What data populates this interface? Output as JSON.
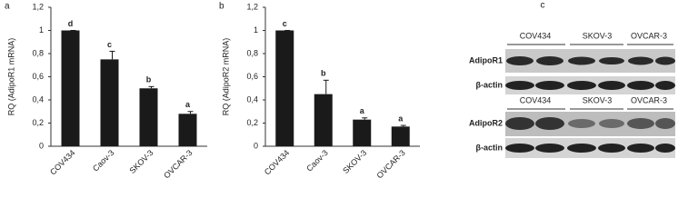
{
  "chart_data": [
    {
      "type": "bar",
      "panel_label": "a",
      "y_label": "RQ (AdipoR1 mRNA)",
      "categories": [
        "COV434",
        "Caov-3",
        "SKOV-3",
        "OVCAR-3"
      ],
      "series": [
        {
          "color": "#1a1a1a",
          "values": [
            1,
            0.75,
            0.5,
            0.28
          ],
          "errors": [
            0,
            0.07,
            0.015,
            0.02
          ]
        }
      ],
      "annotations": [
        "d",
        "c",
        "b",
        "a"
      ],
      "ylim": [
        0,
        1.2
      ],
      "yticks": [
        0,
        {
          "value": 0.2,
          "label": "0,2"
        },
        {
          "value": 0.4,
          "label": "0,4"
        },
        {
          "value": 0.6,
          "label": "0,6"
        },
        {
          "value": 0.8,
          "label": "0,8"
        },
        1,
        {
          "value": 1.2,
          "label": "1,2"
        }
      ]
    },
    {
      "type": "bar",
      "panel_label": "b",
      "y_label": "RQ (AdipoR2 mRNA)",
      "categories": [
        "COV434",
        "Caov-3",
        "SKOV-3",
        "OVCAR-3"
      ],
      "series": [
        {
          "color": "#1a1a1a",
          "values": [
            1,
            0.45,
            0.23,
            0.17
          ],
          "errors": [
            0,
            0.12,
            0.015,
            0.01
          ]
        }
      ],
      "annotations": [
        "c",
        "b",
        "a",
        "a"
      ],
      "ylim": [
        0,
        1.2
      ],
      "yticks": [
        0,
        {
          "value": 0.2,
          "label": "0,2"
        },
        {
          "value": 0.4,
          "label": "0,4"
        },
        {
          "value": 0.6,
          "label": "0,6"
        },
        {
          "value": 0.8,
          "label": "0,8"
        },
        1,
        {
          "value": 1.2,
          "label": "1,2"
        }
      ]
    }
  ],
  "blot_panel": {
    "panel_label": "c",
    "groups": [
      "COV434",
      "SKOV-3",
      "OVCAR-3"
    ],
    "blots": [
      {
        "header": [
          "COV434",
          "SKOV-3",
          "OVCAR-3"
        ],
        "rows": [
          "AdipoR1",
          "β-actin"
        ]
      },
      {
        "header": [
          "COV434",
          "SKOV-3",
          "OVCAR-3"
        ],
        "rows": [
          "AdipoR2",
          "β-actin"
        ]
      }
    ]
  }
}
